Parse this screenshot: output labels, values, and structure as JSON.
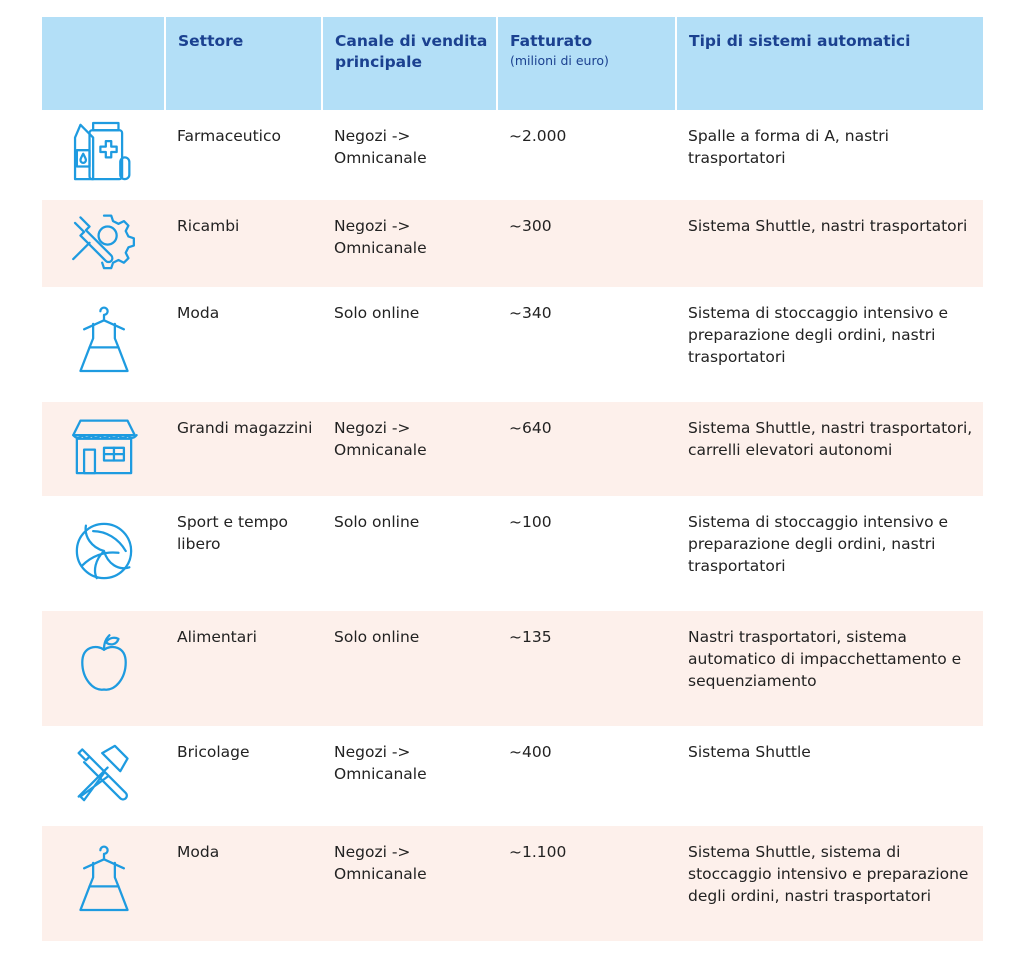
{
  "headers": {
    "icon": "",
    "settore": "Settore",
    "canale": "Canale di vendita principale",
    "fatturato": "Fatturato",
    "fatturato_unit": "(milioni di euro)",
    "tipi": "Tipi di sistemi automatici"
  },
  "icon_color": "#1e9be0",
  "rows": [
    {
      "icon": "pharmacy-icon",
      "settore": "Farmaceutico",
      "canale": "Negozi -> Omnicanale",
      "fatturato": "~2.000",
      "tipi": "Spalle a forma di A, nastri trasportatori"
    },
    {
      "icon": "gear-wrench-icon",
      "settore": "Ricambi",
      "canale": "Negozi -> Omnicanale",
      "fatturato": "~300",
      "tipi": "Sistema Shuttle, nastri trasportatori"
    },
    {
      "icon": "dress-icon",
      "settore": "Moda",
      "canale": "Solo online",
      "fatturato": "~340",
      "tipi": "Sistema di stoccaggio intensivo e preparazione degli ordini, nastri trasportatori"
    },
    {
      "icon": "store-icon",
      "settore": "Grandi magazzini",
      "canale": "Negozi -> Omnicanale",
      "fatturato": "~640",
      "tipi": "Sistema Shuttle, nastri trasportatori, carrelli elevatori autonomi"
    },
    {
      "icon": "volleyball-icon",
      "settore": "Sport e tempo libero",
      "canale": "Solo online",
      "fatturato": "~100",
      "tipi": "Sistema di stoccaggio intensivo e preparazione degli ordini, nastri trasportatori"
    },
    {
      "icon": "apple-icon",
      "settore": "Alimentari",
      "canale": "Solo online",
      "fatturato": "~135",
      "tipi": "Nastri trasportatori, sistema automatico di impacchettamento e sequenziamento"
    },
    {
      "icon": "hammer-screwdriver-icon",
      "settore": "Bricolage",
      "canale": "Negozi -> Omnicanale",
      "fatturato": "~400",
      "tipi": "Sistema Shuttle"
    },
    {
      "icon": "dress-icon",
      "settore": "Moda",
      "canale": "Negozi -> Omnicanale",
      "fatturato": "~1.100",
      "tipi": "Sistema Shuttle, sistema di stoccaggio intensivo e preparazione degli ordini, nastri trasportatori"
    }
  ]
}
